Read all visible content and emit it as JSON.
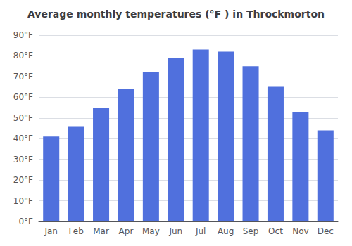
{
  "chart_data": {
    "type": "bar",
    "title": "Average monthly temperatures (°F ) in Throckmorton",
    "categories": [
      "Jan",
      "Feb",
      "Mar",
      "Apr",
      "May",
      "Jun",
      "Jul",
      "Aug",
      "Sep",
      "Oct",
      "Nov",
      "Dec"
    ],
    "values": [
      41,
      46,
      55,
      64,
      72,
      79,
      83,
      82,
      75,
      65,
      53,
      44
    ],
    "ylim": [
      0,
      90
    ],
    "yticks": [
      {
        "value": 0,
        "label": "0°F"
      },
      {
        "value": 10,
        "label": "10°F"
      },
      {
        "value": 20,
        "label": "20°F"
      },
      {
        "value": 30,
        "label": "30°F"
      },
      {
        "value": 40,
        "label": "40°F"
      },
      {
        "value": 50,
        "label": "50°F"
      },
      {
        "value": 60,
        "label": "60°F"
      },
      {
        "value": 70,
        "label": "70°F"
      },
      {
        "value": 80,
        "label": "80°F"
      },
      {
        "value": 90,
        "label": "90°F"
      }
    ],
    "grid": true
  }
}
